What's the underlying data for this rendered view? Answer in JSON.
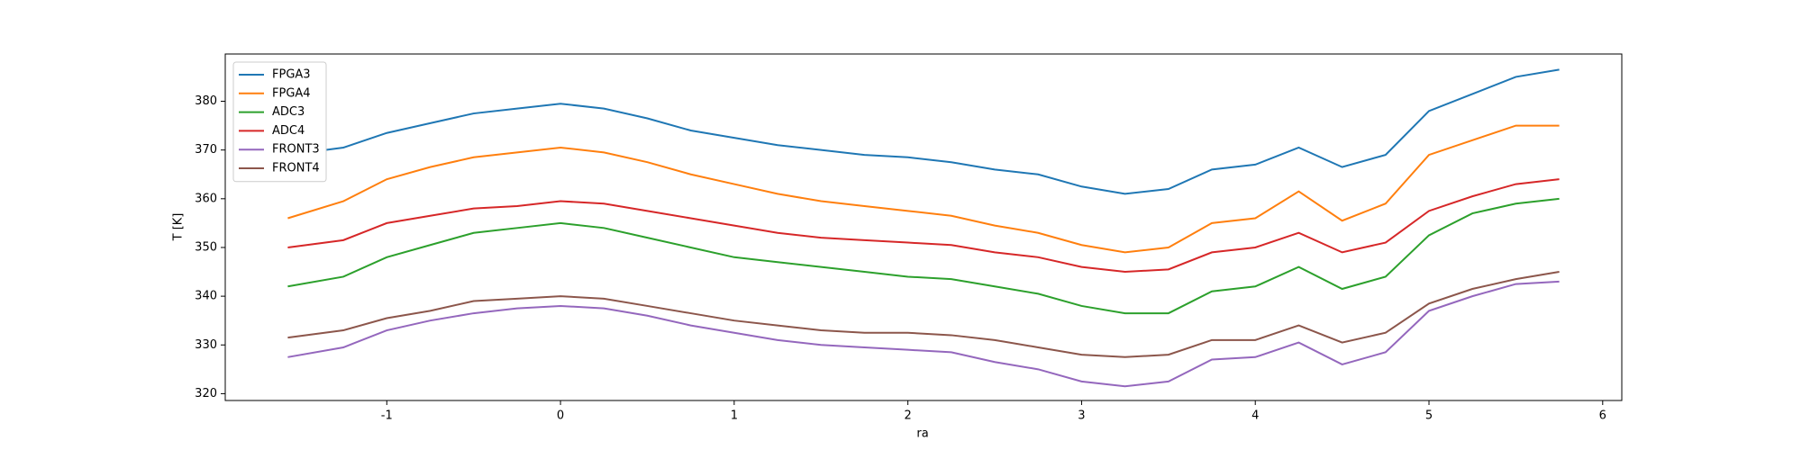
{
  "chart_data": {
    "type": "line",
    "xlabel": "ra",
    "ylabel": "T [K]",
    "x": [
      -1.57,
      -1.25,
      -1,
      -0.75,
      -0.5,
      -0.25,
      0,
      0.25,
      0.5,
      0.75,
      1,
      1.25,
      1.5,
      1.75,
      2,
      2.25,
      2.5,
      2.75,
      3,
      3.25,
      3.5,
      3.75,
      4,
      4.25,
      4.5,
      4.75,
      5,
      5.25,
      5.5,
      5.75
    ],
    "series": [
      {
        "name": "FPGA3",
        "color": "#1f77b4",
        "values": [
          369,
          370.5,
          373.5,
          375.5,
          377.5,
          378.5,
          379.5,
          378.5,
          376.5,
          374,
          372.5,
          371,
          370,
          369,
          368.5,
          367.5,
          366,
          365,
          362.5,
          361,
          362,
          366,
          367,
          370.5,
          366.5,
          369,
          378,
          381.5,
          385,
          386.5
        ]
      },
      {
        "name": "FPGA4",
        "color": "#ff7f0e",
        "values": [
          356,
          359.5,
          364,
          366.5,
          368.5,
          369.5,
          370.5,
          369.5,
          367.5,
          365,
          363,
          361,
          359.5,
          358.5,
          357.5,
          356.5,
          354.5,
          353,
          350.5,
          349,
          350,
          355,
          356,
          361.5,
          355.5,
          359,
          369,
          372,
          375,
          375
        ]
      },
      {
        "name": "ADC3",
        "color": "#2ca02c",
        "values": [
          342,
          344,
          348,
          350.5,
          353,
          354,
          355,
          354,
          352,
          350,
          348,
          347,
          346,
          345,
          344,
          343.5,
          342,
          340.5,
          338,
          336.5,
          336.5,
          341,
          342,
          346,
          341.5,
          344,
          352.5,
          357,
          359,
          360
        ]
      },
      {
        "name": "ADC4",
        "color": "#d62728",
        "values": [
          350,
          351.5,
          355,
          356.5,
          358,
          358.5,
          359.5,
          359,
          357.5,
          356,
          354.5,
          353,
          352,
          351.5,
          351,
          350.5,
          349,
          348,
          346,
          345,
          345.5,
          349,
          350,
          353,
          349,
          351,
          357.5,
          360.5,
          363,
          364
        ]
      },
      {
        "name": "FRONT3",
        "color": "#9467bd",
        "values": [
          327.5,
          329.5,
          333,
          335,
          336.5,
          337.5,
          338,
          337.5,
          336,
          334,
          332.5,
          331,
          330,
          329.5,
          329,
          328.5,
          326.5,
          325,
          322.5,
          321.5,
          322.5,
          327,
          327.5,
          330.5,
          326,
          328.5,
          337,
          340,
          342.5,
          343
        ]
      },
      {
        "name": "FRONT4",
        "color": "#8c564b",
        "values": [
          331.5,
          333,
          335.5,
          337,
          339,
          339.5,
          340,
          339.5,
          338,
          336.5,
          335,
          334,
          333,
          332.5,
          332.5,
          332,
          331,
          329.5,
          328,
          327.5,
          328,
          331,
          331,
          334,
          330.5,
          332.5,
          338.5,
          341.5,
          343.5,
          345
        ]
      }
    ],
    "xlim": [
      -1.93,
      6.11
    ],
    "ylim": [
      318.6,
      389.7
    ],
    "xticks": [
      -1,
      0,
      1,
      2,
      3,
      4,
      5,
      6
    ],
    "yticks": [
      320,
      330,
      340,
      350,
      360,
      370,
      380
    ],
    "legend": "upper left"
  }
}
